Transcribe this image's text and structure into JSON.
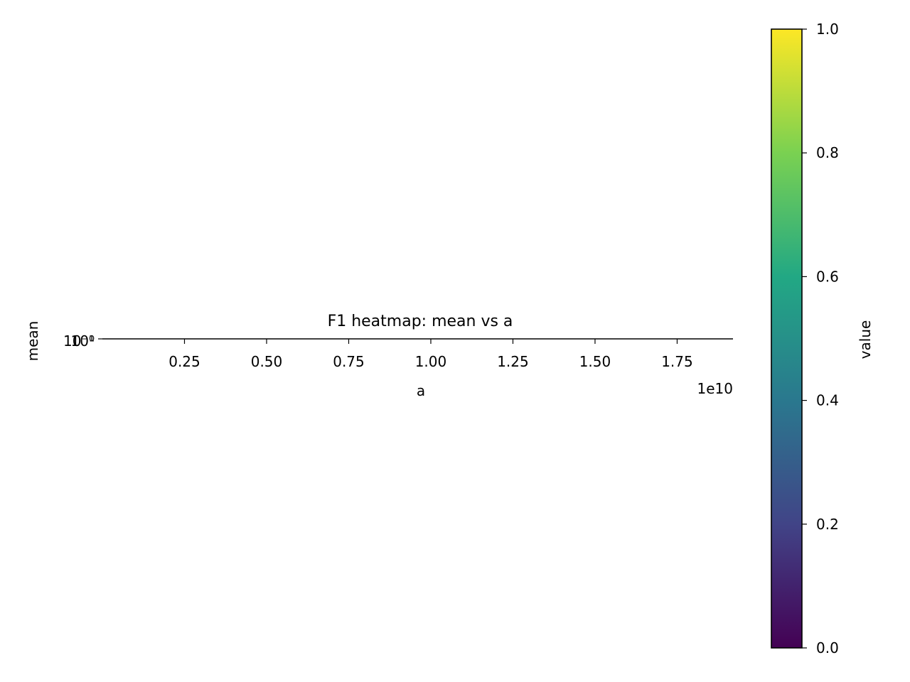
{
  "chart_data": {
    "type": "heatmap",
    "title": "F1 heatmap: mean vs a",
    "xlabel": "a",
    "ylabel": "mean",
    "x_offset_label": "1e10",
    "xlim": [
      0.0,
      19200000000.0
    ],
    "x_scale": "linear",
    "x_tick_values": [
      2500000000.0,
      5000000000.0,
      7500000000.0,
      10000000000.0,
      12500000000.0,
      15000000000.0,
      17500000000.0
    ],
    "x_tick_labels": [
      "0.25",
      "0.50",
      "0.75",
      "1.00",
      "1.25",
      "1.50",
      "1.75"
    ],
    "y_scale": "log",
    "y_tick_labels": [
      "10⁻¹",
      "10⁰"
    ],
    "cells": [],
    "grid": false,
    "colorbar": {
      "label": "value",
      "vmin": 0.0,
      "vmax": 1.0,
      "colormap": "viridis",
      "tick_values": [
        0.0,
        0.2,
        0.4,
        0.6,
        0.8,
        1.0
      ],
      "tick_labels": [
        "0.0",
        "0.2",
        "0.4",
        "0.6",
        "0.8",
        "1.0"
      ],
      "colors": [
        "#440154",
        "#414487",
        "#2a788e",
        "#22a884",
        "#7ad151",
        "#fde725"
      ]
    }
  }
}
